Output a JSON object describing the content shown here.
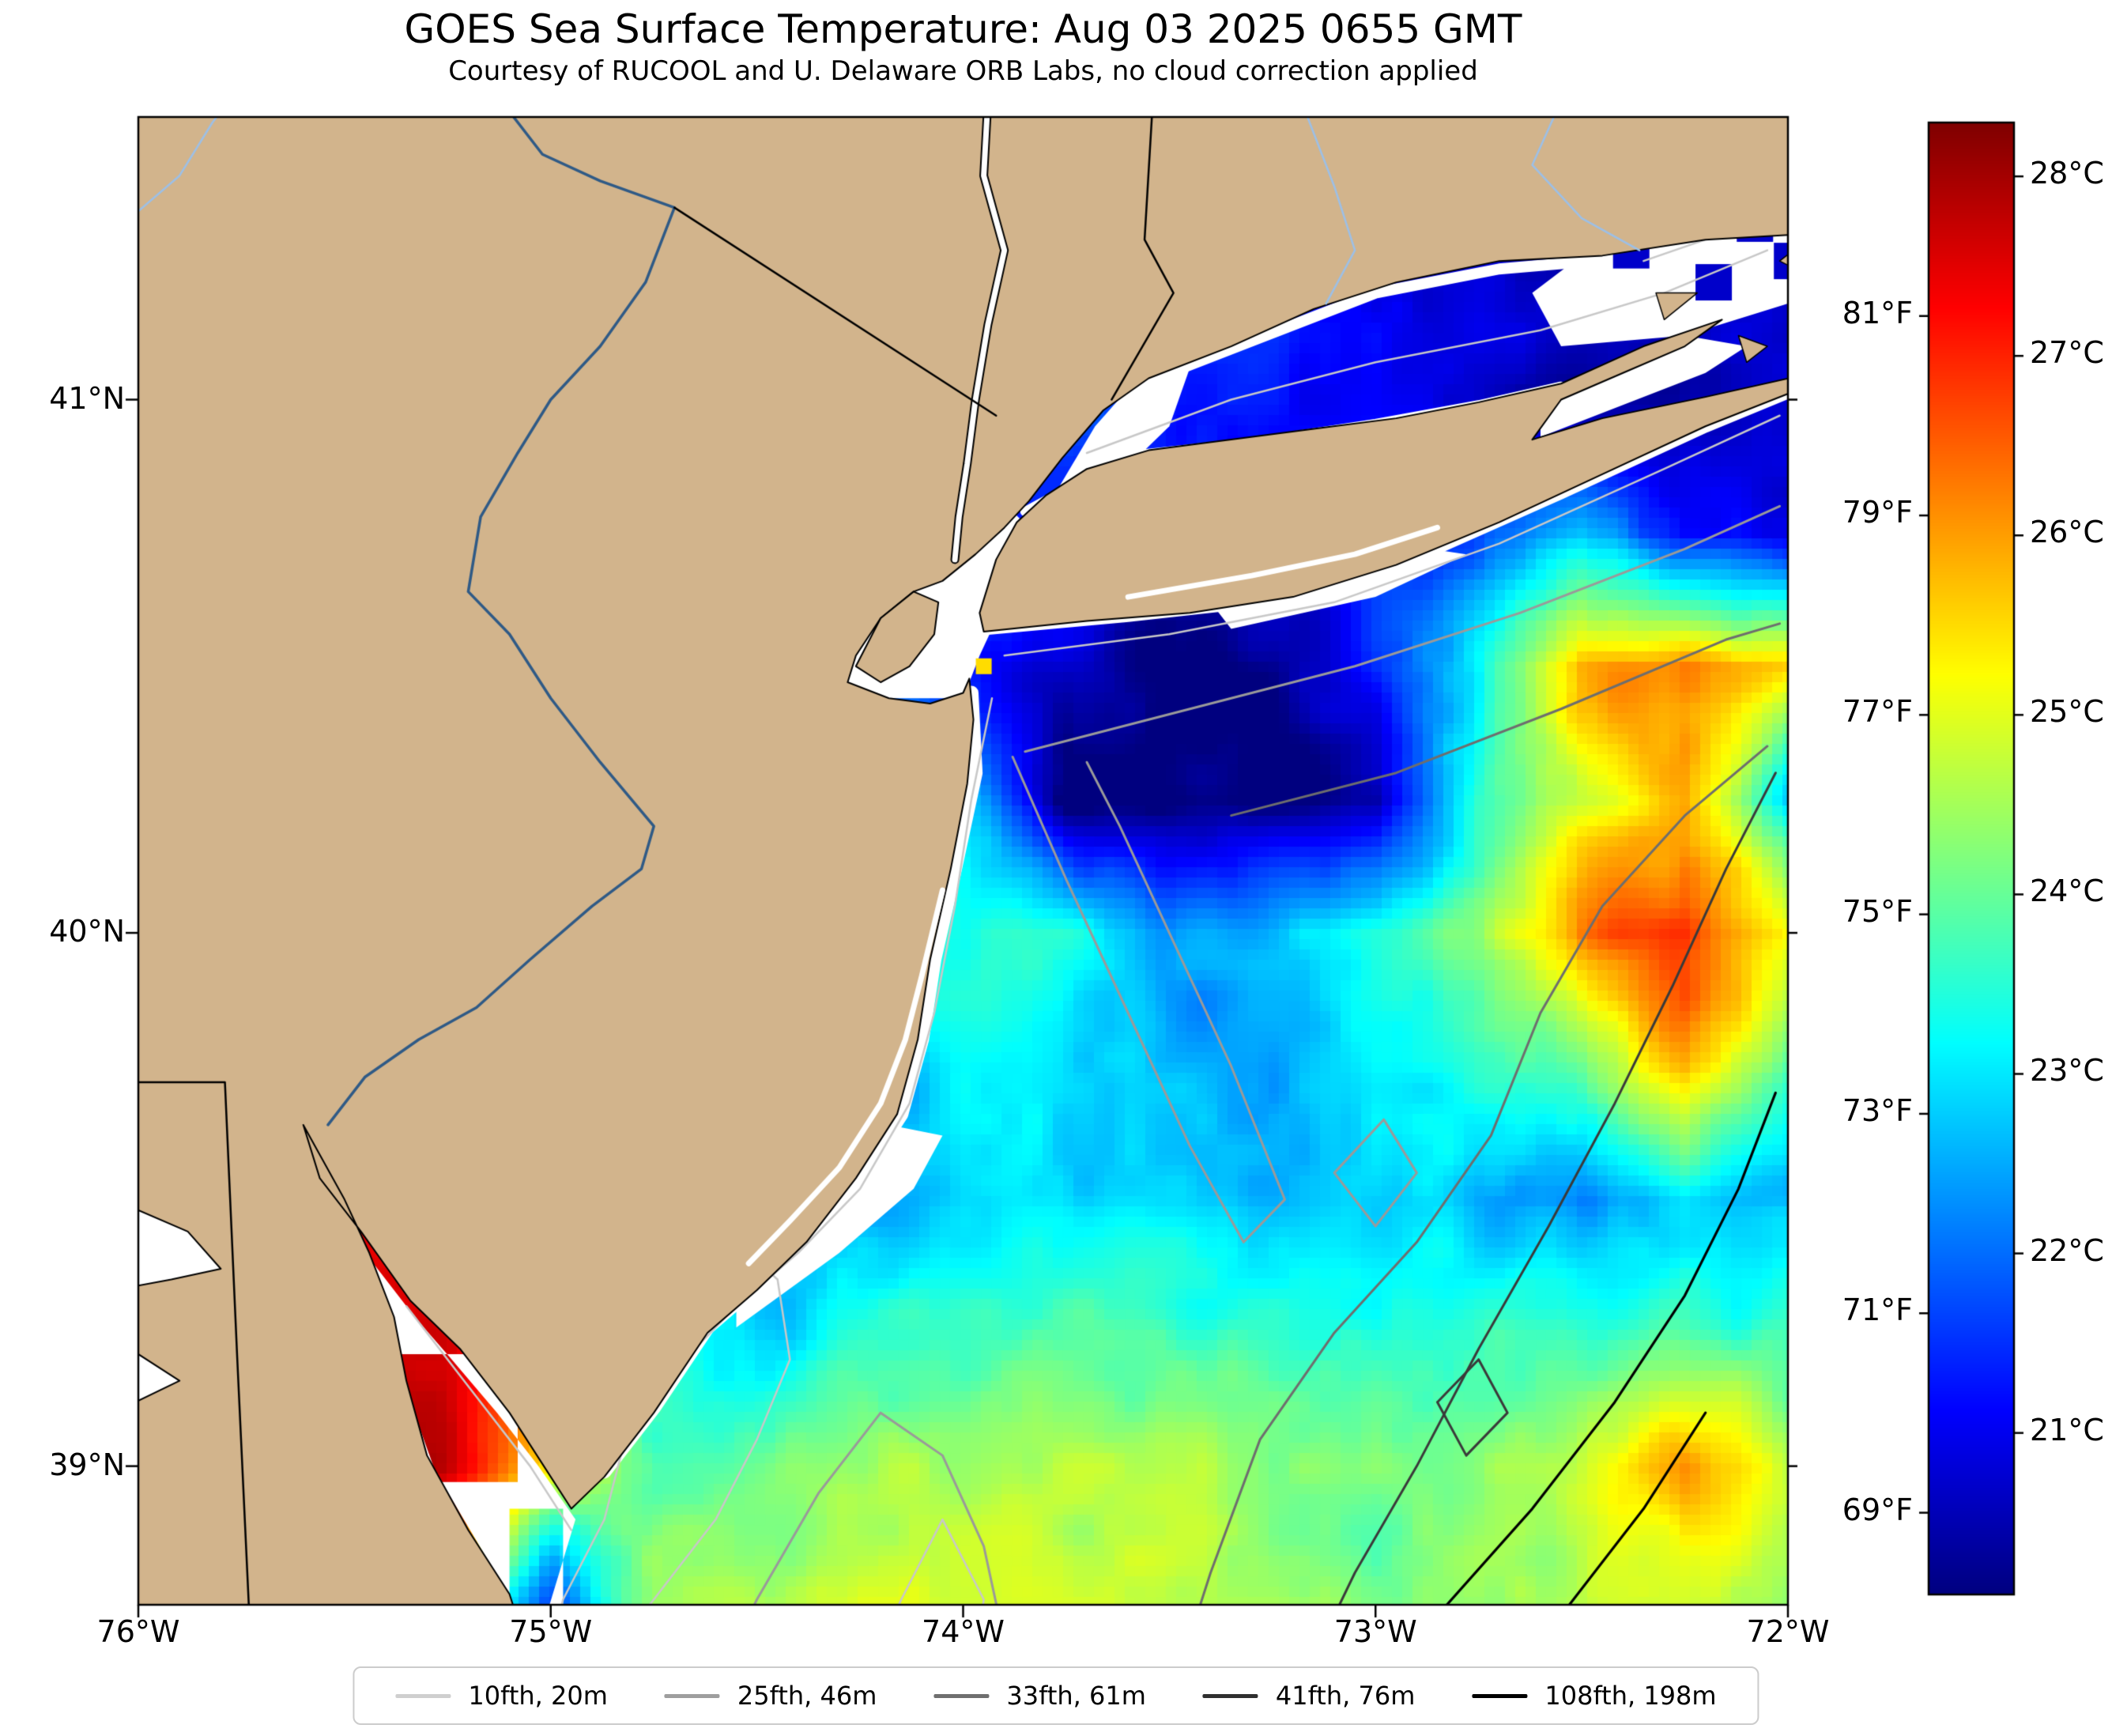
{
  "title": "GOES Sea Surface Temperature: Aug 03 2025 0655 GMT",
  "subtitle": "Courtesy of RUCOOL and U. Delaware ORB Labs, no cloud correction applied",
  "x_axis": {
    "ticks": [
      {
        "label": "76°W",
        "lon": -76
      },
      {
        "label": "75°W",
        "lon": -75
      },
      {
        "label": "74°W",
        "lon": -74
      },
      {
        "label": "73°W",
        "lon": -73
      },
      {
        "label": "72°W",
        "lon": -72
      }
    ]
  },
  "y_axis": {
    "ticks": [
      {
        "label": "41°N",
        "lat": 41
      },
      {
        "label": "40°N",
        "lat": 40
      },
      {
        "label": "39°N",
        "lat": 39
      }
    ]
  },
  "colorbar": {
    "min_c": 20.1,
    "max_c": 28.3,
    "colormap": "jet",
    "celsius_ticks": [
      {
        "label": "28°C",
        "value_c": 28
      },
      {
        "label": "27°C",
        "value_c": 27
      },
      {
        "label": "26°C",
        "value_c": 26
      },
      {
        "label": "25°C",
        "value_c": 25
      },
      {
        "label": "24°C",
        "value_c": 24
      },
      {
        "label": "23°C",
        "value_c": 23
      },
      {
        "label": "22°C",
        "value_c": 22
      },
      {
        "label": "21°C",
        "value_c": 21
      }
    ],
    "fahrenheit_ticks": [
      {
        "label": "81°F",
        "value_f": 81
      },
      {
        "label": "79°F",
        "value_f": 79
      },
      {
        "label": "77°F",
        "value_f": 77
      },
      {
        "label": "75°F",
        "value_f": 75
      },
      {
        "label": "73°F",
        "value_f": 73
      },
      {
        "label": "71°F",
        "value_f": 71
      },
      {
        "label": "69°F",
        "value_f": 69
      }
    ]
  },
  "legend": {
    "items": [
      {
        "label": "10fth, 20m",
        "color": "#cfcfcf"
      },
      {
        "label": "25fth, 46m",
        "color": "#9e9e9e"
      },
      {
        "label": "33fth, 61m",
        "color": "#6f6f6f"
      },
      {
        "label": "41fth, 76m",
        "color": "#2f2f2f"
      },
      {
        "label": "108fth, 198m",
        "color": "#000000"
      }
    ]
  },
  "map": {
    "land_color": "#d2b48c",
    "no_data_color": "#ffffff",
    "extent": {
      "lon_min": -76,
      "lon_max": -72,
      "lat_min": 38.74,
      "lat_max": 41.53
    }
  },
  "chart_data": {
    "type": "heatmap",
    "units": "°C",
    "colormap": "jet",
    "vmin_c": 20.1,
    "vmax_c": 28.3,
    "note": "Sea surface temperature; white = no data (cloud/mask); null = land or no data",
    "lon": [
      -76,
      -75.75,
      -75.5,
      -75.25,
      -75,
      -74.75,
      -74.5,
      -74.25,
      -74,
      -73.75,
      -73.5,
      -73.25,
      -73,
      -72.75,
      -72.5,
      -72.25,
      -72
    ],
    "lat": [
      41.5,
      41.25,
      41.0,
      40.75,
      40.5,
      40.25,
      40.0,
      39.75,
      39.5,
      39.25,
      39.0,
      38.75
    ],
    "sst_grid": [
      [
        null,
        null,
        null,
        null,
        null,
        null,
        null,
        null,
        null,
        null,
        null,
        null,
        null,
        null,
        null,
        null,
        null
      ],
      [
        null,
        null,
        null,
        null,
        null,
        null,
        null,
        null,
        null,
        null,
        null,
        null,
        null,
        21.2,
        20.8,
        20.7,
        21.0
      ],
      [
        null,
        null,
        null,
        null,
        null,
        null,
        null,
        null,
        null,
        22.4,
        22.0,
        21.8,
        21.6,
        21.2,
        20.9,
        21.0,
        21.4
      ],
      [
        null,
        null,
        null,
        null,
        null,
        null,
        null,
        null,
        null,
        null,
        null,
        null,
        null,
        null,
        null,
        21.5,
        21.2
      ],
      [
        null,
        null,
        null,
        null,
        null,
        null,
        null,
        null,
        22.0,
        21.0,
        20.5,
        20.6,
        21.8,
        23.5,
        26.3,
        26.8,
        26.0
      ],
      [
        null,
        null,
        null,
        null,
        null,
        null,
        null,
        null,
        23.5,
        20.5,
        20.4,
        20.5,
        20.8,
        24.0,
        25.3,
        26.3,
        23.2
      ],
      [
        null,
        null,
        null,
        null,
        null,
        null,
        null,
        null,
        24.0,
        23.8,
        22.6,
        23.2,
        23.6,
        24.6,
        26.8,
        27.4,
        25.8
      ],
      [
        null,
        null,
        null,
        null,
        null,
        null,
        null,
        null,
        23.4,
        23.4,
        23.1,
        23.0,
        23.5,
        23.9,
        24.3,
        26.2,
        24.3
      ],
      [
        null,
        null,
        null,
        null,
        null,
        null,
        null,
        22.6,
        23.2,
        23.3,
        23.2,
        23.0,
        23.4,
        22.9,
        22.4,
        23.4,
        22.9
      ],
      [
        null,
        null,
        null,
        28.0,
        null,
        null,
        23.2,
        23.8,
        24.0,
        24.2,
        24.3,
        24.0,
        24.0,
        24.0,
        24.1,
        24.2,
        24.0
      ],
      [
        null,
        null,
        null,
        28.5,
        25.5,
        24.2,
        24.5,
        24.8,
        25.0,
        25.0,
        25.0,
        24.6,
        24.5,
        24.6,
        25.4,
        26.4,
        25.4
      ],
      [
        null,
        null,
        null,
        null,
        22.2,
        24.8,
        25.1,
        25.3,
        25.3,
        25.2,
        25.0,
        24.8,
        24.6,
        24.8,
        25.0,
        25.4,
        25.0
      ]
    ],
    "features": [
      {
        "name": "cold upwelling band offshore NJ / south of western Long Island",
        "approx_temp_c": 20.5
      },
      {
        "name": "cool water in Long Island Sound",
        "approx_temp_c": 21.5
      },
      {
        "name": "warm band south of eastern Long Island",
        "approx_temp_c": 27.0
      },
      {
        "name": "warm eddy near 72.3W 39.9N",
        "approx_temp_c": 27.5
      },
      {
        "name": "hot spot in Delaware Bay",
        "approx_temp_c": 28.4
      },
      {
        "name": "warm patch bottom right near 72.3W 39.0N",
        "approx_temp_c": 26.4
      }
    ]
  }
}
